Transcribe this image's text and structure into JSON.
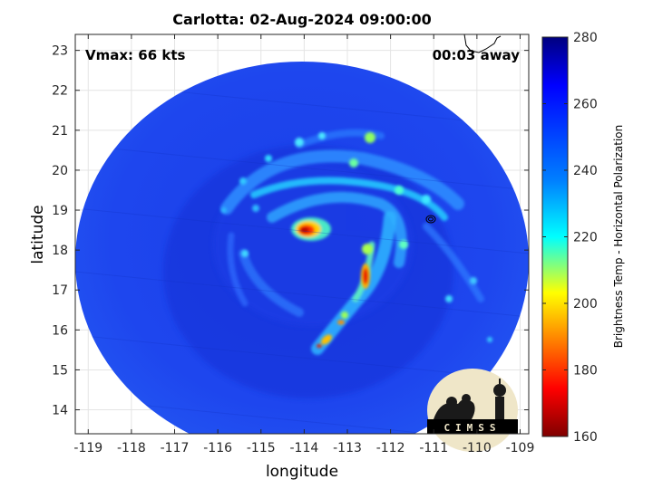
{
  "title": "Carlotta: 02-Aug-2024 09:00:00",
  "annotations": {
    "vmax": "Vmax: 66 kts",
    "time_away": "00:03 away"
  },
  "axes": {
    "xlabel": "longitude",
    "ylabel": "latitude",
    "xlim": [
      -119.3,
      -108.8
    ],
    "ylim": [
      13.4,
      23.4
    ],
    "xticks": [
      -119,
      -118,
      -117,
      -116,
      -115,
      -114,
      -113,
      -112,
      -111,
      -110,
      -109
    ],
    "xtick_labels": [
      "-119",
      "-118",
      "-117",
      "-116",
      "-115",
      "-114",
      "-113",
      "-112",
      "-111",
      "-110",
      "-109"
    ],
    "yticks": [
      14,
      15,
      16,
      17,
      18,
      19,
      20,
      21,
      22,
      23
    ],
    "ytick_labels": [
      "14",
      "15",
      "16",
      "17",
      "18",
      "19",
      "20",
      "21",
      "22",
      "23"
    ],
    "grid": true
  },
  "colorbar": {
    "label": "Brightness Temp - Horizontal Polarization",
    "range": [
      160,
      280
    ],
    "ticks": [
      160,
      180,
      200,
      220,
      240,
      260,
      280
    ],
    "tick_labels": [
      "160",
      "180",
      "200",
      "220",
      "240",
      "260",
      "280"
    ],
    "colormap": "jet"
  },
  "logo": {
    "text": "CIMSS"
  },
  "colors": {
    "background_ocean": "#1e3fe6",
    "cold_core": "#b40000"
  }
}
